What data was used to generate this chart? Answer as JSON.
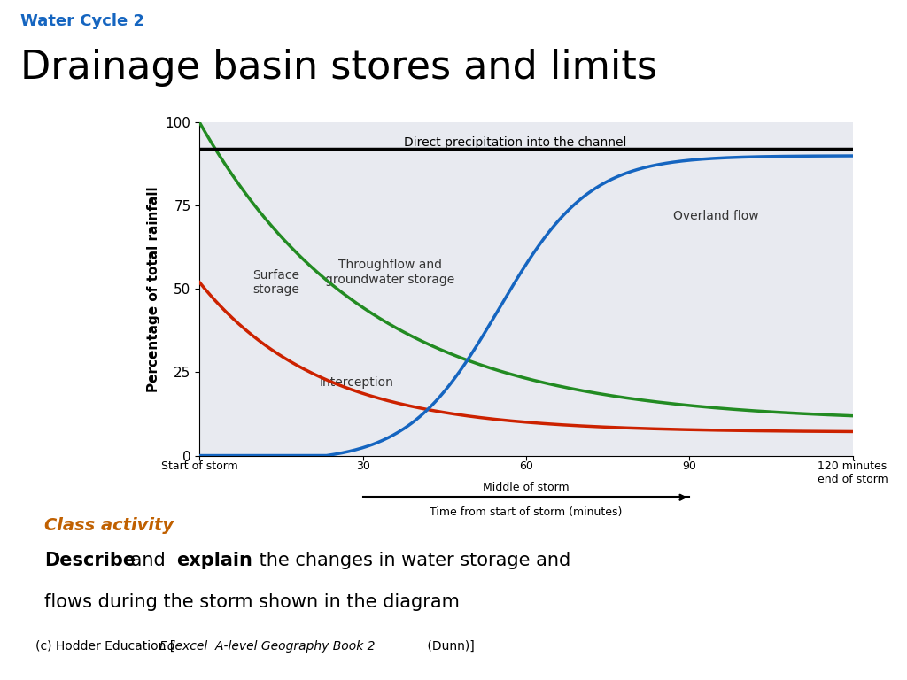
{
  "title_small": "Water Cycle 2",
  "title_large": "Drainage basin stores and limits",
  "title_small_color": "#1565C0",
  "title_large_color": "#000000",
  "plot_bg_color": "#E8EAF0",
  "outer_bg_color": "#C8E6C0",
  "white_bg": "#FFFFFF",
  "xlabel_top": "Time from start of storm (minutes)",
  "ylabel": "Percentage of total rainfall",
  "yticks": [
    0,
    25,
    50,
    75,
    100
  ],
  "xticks": [
    0,
    30,
    60,
    90,
    120
  ],
  "xticklabels": [
    "Start of storm",
    "30",
    "60",
    "90",
    "120 minutes\nend of storm"
  ],
  "black_line_y": 92,
  "black_line_label": "Direct precipitation into the channel",
  "overland_flow_label": "Overland flow",
  "throughflow_label": "Throughflow and\ngroundwater storage",
  "surface_storage_label": "Surface\nstorage",
  "interception_label": "Interception",
  "class_activity_bg": "#F5C9A0",
  "class_activity_title": "Class activity",
  "class_activity_title_color": "#C06000",
  "class_activity_text1_bold": "Describe",
  "class_activity_text1": " and ",
  "class_activity_text2_bold": "explain",
  "class_activity_text2": " the changes in water storage and\nflows during the storm shown in the diagram",
  "footer": "(c) Hodder Education [",
  "footer_italic": "Edexcel  A-level Geography Book 2",
  "footer_end": " (Dunn)]",
  "middle_of_storm_label": "Middle of storm",
  "middle_of_storm_arrow": "Time from start of storm (minutes)"
}
